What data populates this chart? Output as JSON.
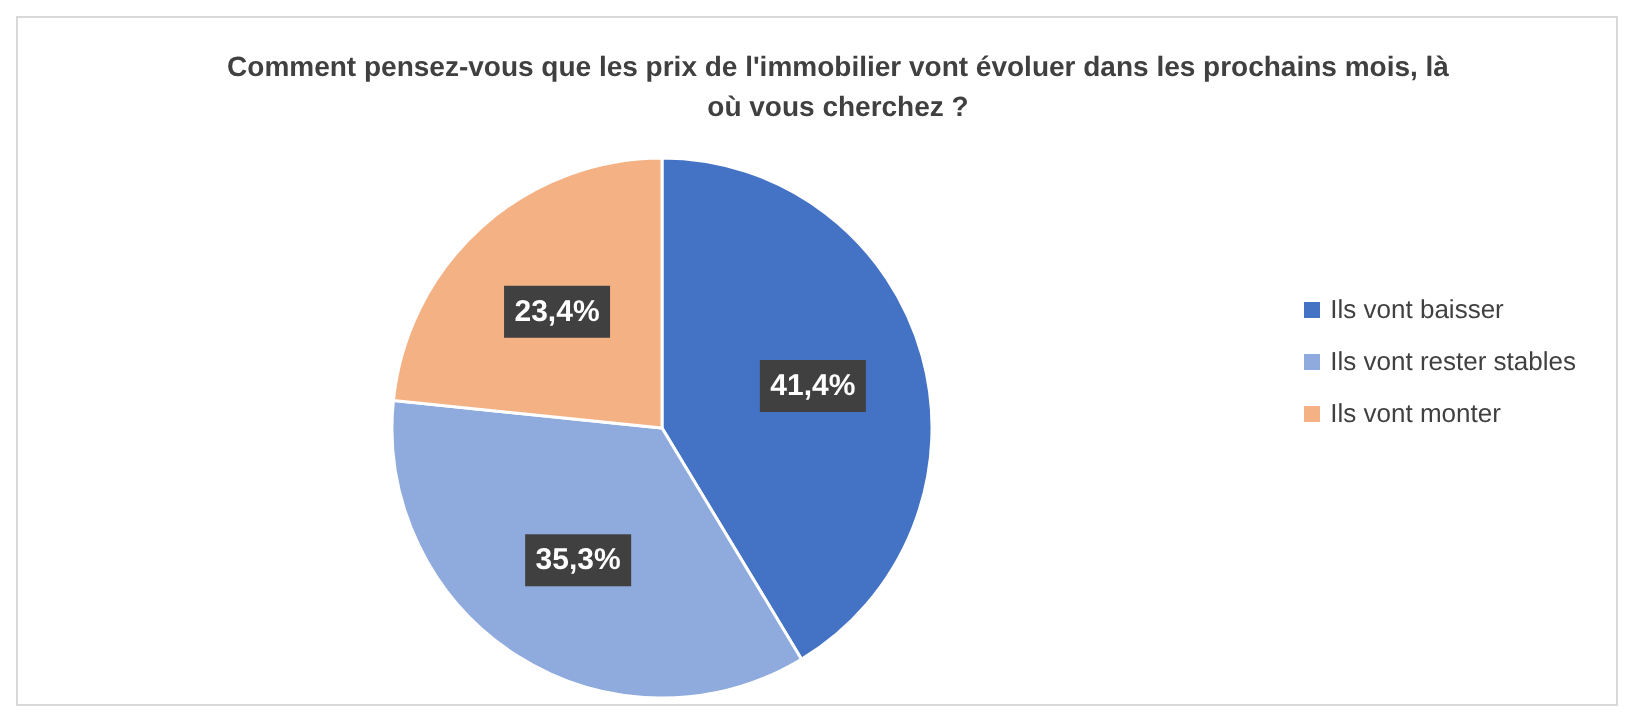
{
  "chart_data": {
    "type": "pie",
    "title": "Comment pensez-vous que les prix de l'immobilier vont évoluer dans les prochains mois, là où vous cherchez ?",
    "categories": [
      "Ils vont baisser",
      "Ils vont rester stables",
      "Ils vont monter"
    ],
    "values": [
      41.4,
      35.3,
      23.4
    ],
    "colors": [
      "#4472c4",
      "#8faadc",
      "#f4b183"
    ],
    "value_labels": [
      "41,4%",
      "35,3%",
      "23,4%"
    ],
    "legend": "right"
  }
}
